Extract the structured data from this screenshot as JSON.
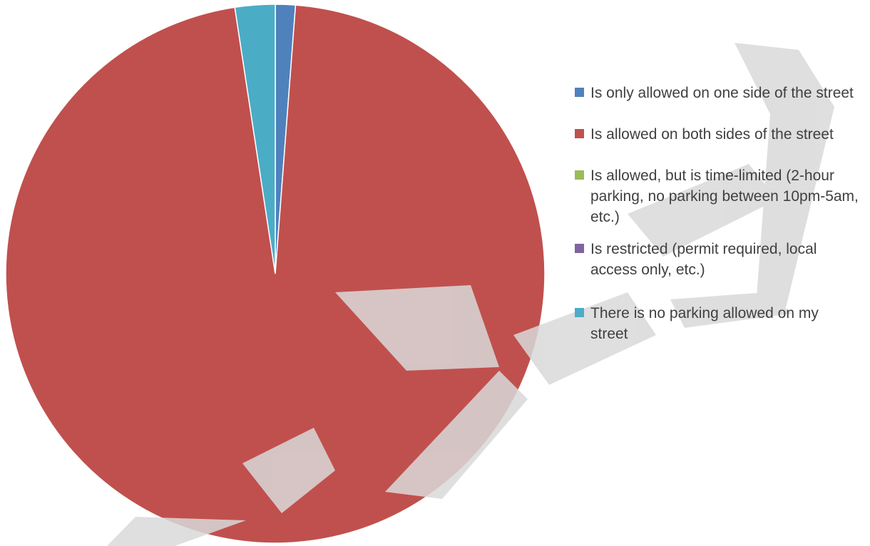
{
  "watermark": "DRAFT",
  "chart_data": {
    "type": "pie",
    "title": "",
    "unit": "percent",
    "slices": [
      {
        "label": "Is only allowed on one side of the street",
        "value": 1.2,
        "color": "#4F81BD"
      },
      {
        "label": "Is allowed on both sides of the street",
        "value": 96.4,
        "color": "#C0504D"
      },
      {
        "label": "Is allowed, but is time-limited (2-hour parking, no parking between 10pm-5am, etc.)",
        "value": 0,
        "color": "#9BBB59"
      },
      {
        "label": "Is restricted (permit required, local access only, etc.)",
        "value": 0,
        "color": "#8064A2"
      },
      {
        "label": "There is no parking allowed on my street",
        "value": 2.4,
        "color": "#4BACC6"
      }
    ],
    "start_angle": "12 o'clock",
    "direction": "clockwise",
    "legend_position": "right"
  }
}
